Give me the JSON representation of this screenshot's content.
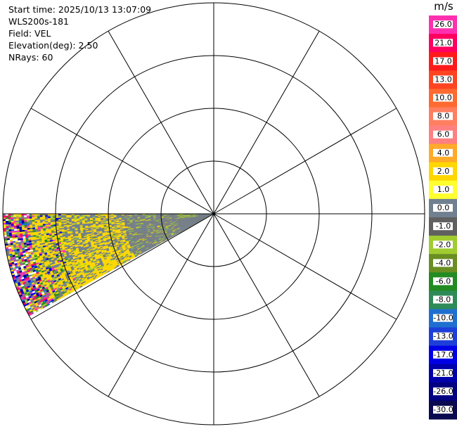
{
  "header": {
    "start_time": "Start time: 2025/10/13 13:07:09",
    "instrument": "WLS200s-181",
    "field": "Field: VEL",
    "elevation": "Elevation(deg): 2.50",
    "nrays": "NRays: 60"
  },
  "colorbar": {
    "unit": "m/s",
    "tick_labels": [
      "26.0",
      "21.0",
      "17.0",
      "13.0",
      "10.0",
      "8.0",
      "6.0",
      "4.0",
      "2.0",
      "1.0",
      "0.0",
      "-1.0",
      "-2.0",
      "-4.0",
      "-6.0",
      "-8.0",
      "-10.0",
      "-13.0",
      "-17.0",
      "-21.0",
      "-26.0",
      "-30.0"
    ],
    "colors": [
      "#ff30b0",
      "#ff0060",
      "#ff1a1a",
      "#ff4422",
      "#ff6a30",
      "#ff7f60",
      "#ff8080",
      "#ffaa2a",
      "#ffd700",
      "#ffff30",
      "#708090",
      "#606060",
      "#a0cc30",
      "#6b8e23",
      "#228b22",
      "#2e8b57",
      "#1e6fd0",
      "#1d3fd8",
      "#0000e6",
      "#0000aa",
      "#000080",
      "#0a0a50"
    ]
  },
  "chart_data": {
    "type": "ppi-polar",
    "field": "VEL",
    "range_rings": 4,
    "azimuth_spokes_deg": [
      0,
      30,
      60,
      90,
      120,
      150,
      180,
      210,
      240,
      270,
      300,
      330
    ],
    "sector_azimuth_deg": [
      241,
      270
    ],
    "grid": true,
    "velocity_regions": [
      {
        "name": "far-range mixed noise",
        "range_fraction": [
          0.9,
          1.0
        ],
        "dominant": "mixed"
      },
      {
        "name": "yellow band",
        "range_fraction": [
          0.35,
          0.9
        ],
        "dominant": 2.0
      },
      {
        "name": "grey band",
        "range_fraction": [
          0.0,
          0.55
        ],
        "dominant": 0.0
      },
      {
        "name": "green speckles",
        "range_fraction": [
          0.2,
          0.5
        ],
        "dominant": -2.0
      }
    ]
  }
}
